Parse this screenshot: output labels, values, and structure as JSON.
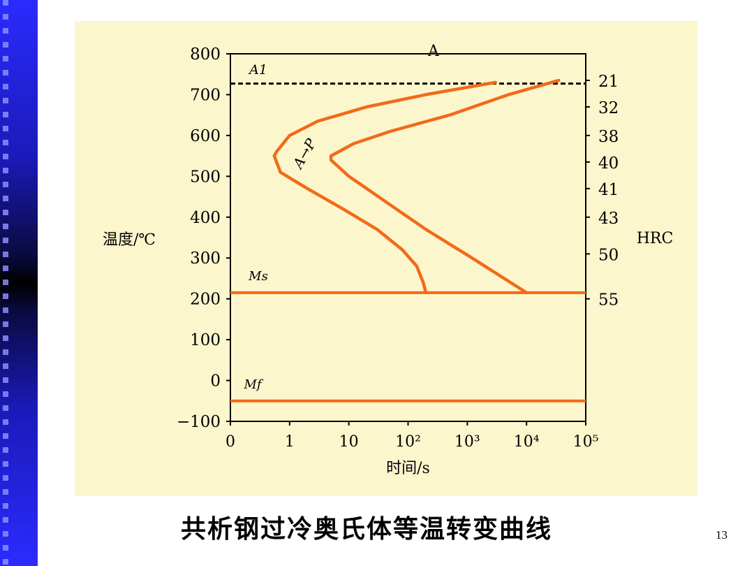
{
  "caption": "共析钢过冷奥氏体等温转变曲线",
  "page_number": "13",
  "colors": {
    "panel_bg": "#fcf6cd",
    "curve": "#f26a18",
    "axis": "#000000",
    "sidebar": "#2b2bff"
  },
  "chart_data": {
    "type": "line",
    "title": "",
    "ylabel": "温度/℃",
    "xlabel": "时间/s",
    "y2label": "HRC",
    "ylim": [
      -100,
      800
    ],
    "xlim": [
      0,
      100000
    ],
    "y_ticks": [
      "800",
      "700",
      "600",
      "500",
      "400",
      "300",
      "200",
      "100",
      "0",
      "−100"
    ],
    "y_tick_values": [
      800,
      700,
      600,
      500,
      400,
      300,
      200,
      100,
      0,
      -100
    ],
    "x_ticks": [
      "0",
      "1",
      "10",
      "10²",
      "10³",
      "10⁴",
      "10⁵"
    ],
    "x_tick_values": [
      0,
      1,
      10,
      100,
      1000,
      10000,
      100000
    ],
    "hrc_ticks": [
      {
        "label": "21",
        "temp": 735
      },
      {
        "label": "32",
        "temp": 670
      },
      {
        "label": "38",
        "temp": 600
      },
      {
        "label": "40",
        "temp": 535
      },
      {
        "label": "41",
        "temp": 470
      },
      {
        "label": "43",
        "temp": 400
      },
      {
        "label": "50",
        "temp": 310
      },
      {
        "label": "55",
        "temp": 200
      }
    ],
    "annotations": {
      "region": "A",
      "a1": "A1",
      "ms": "Ms",
      "mf": "Mf",
      "transform": "A→P"
    },
    "reference_lines": [
      {
        "name": "A1",
        "temp": 727,
        "style": "dashed"
      },
      {
        "name": "Ms",
        "temp": 215,
        "style": "solid"
      },
      {
        "name": "Mf",
        "temp": -50,
        "style": "solid"
      }
    ],
    "series": [
      {
        "name": "start",
        "points": [
          [
            3000,
            730
          ],
          [
            200,
            700
          ],
          [
            20,
            670
          ],
          [
            3,
            635
          ],
          [
            1,
            600
          ],
          [
            0.6,
            560
          ],
          [
            0.55,
            550
          ],
          [
            0.7,
            510
          ],
          [
            2,
            470
          ],
          [
            8,
            420
          ],
          [
            30,
            370
          ],
          [
            80,
            320
          ],
          [
            140,
            280
          ],
          [
            180,
            240
          ],
          [
            200,
            215
          ]
        ]
      },
      {
        "name": "finish",
        "points": [
          [
            35000,
            735
          ],
          [
            5000,
            700
          ],
          [
            500,
            650
          ],
          [
            50,
            610
          ],
          [
            12,
            580
          ],
          [
            5,
            550
          ],
          [
            5,
            540
          ],
          [
            10,
            500
          ],
          [
            50,
            430
          ],
          [
            200,
            370
          ],
          [
            1200,
            300
          ],
          [
            10000,
            215
          ]
        ]
      }
    ]
  }
}
